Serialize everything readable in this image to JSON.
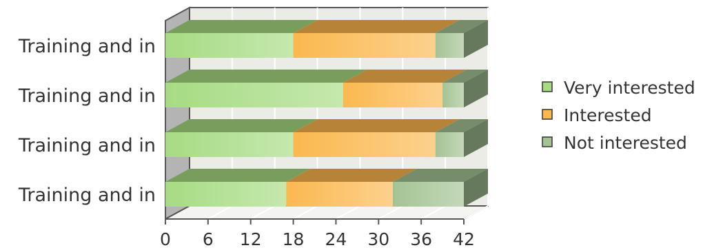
{
  "chart_data": {
    "type": "bar",
    "orientation": "horizontal",
    "stacked": true,
    "style": "3d",
    "title": "",
    "xlabel": "",
    "ylabel": "",
    "categories": [
      "Training and in",
      "Training and in",
      "Training and in",
      "Training and in"
    ],
    "x_ticks": [
      "0",
      "6",
      "12",
      "18",
      "24",
      "30",
      "36",
      "42"
    ],
    "xlim": [
      0,
      42
    ],
    "grid": true,
    "legend_position": "right",
    "series": [
      {
        "name": "Very interested",
        "color": "#a6db83",
        "values": [
          18,
          25,
          18,
          17
        ]
      },
      {
        "name": "Interested",
        "color": "#fbb84f",
        "values": [
          20,
          14,
          20,
          15
        ]
      },
      {
        "name": "Not interested",
        "color": "#a4c394",
        "values": [
          4,
          3,
          4,
          10
        ]
      }
    ]
  }
}
